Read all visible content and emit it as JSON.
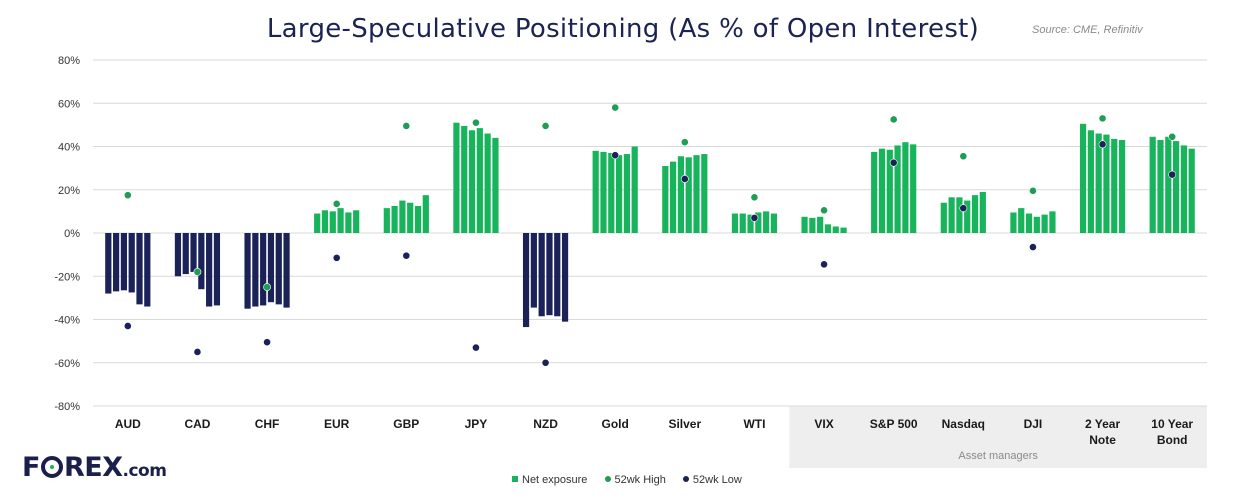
{
  "title": "Large-Speculative Positioning (As % of Open Interest)",
  "source": "Source: CME, Refinitiv",
  "brand": {
    "logo_pre": "F",
    "logo_post": "REX",
    "logo_suffix": ".com"
  },
  "colors": {
    "long": "#17b45b",
    "short": "#1b2257",
    "high": "#1e9e55",
    "low": "#1b2257",
    "shade": "#eeeeee",
    "grid": "#d9d9d9"
  },
  "chart_data": {
    "type": "bar",
    "ylim": [
      -80,
      80
    ],
    "yticks": [
      -80,
      -60,
      -40,
      -20,
      0,
      20,
      40,
      60,
      80
    ],
    "ytick_suffix": "%",
    "group_label": "Asset managers",
    "categories": [
      {
        "label": [
          "AUD"
        ],
        "bars": [
          -28,
          -27,
          -26.5,
          -27.5,
          -33,
          -34
        ],
        "high": 17.5,
        "low": -43
      },
      {
        "label": [
          "CAD"
        ],
        "bars": [
          -20,
          -19,
          -18,
          -26,
          -34,
          -33.5
        ],
        "high": -18,
        "low": -55
      },
      {
        "label": [
          "CHF"
        ],
        "bars": [
          -35,
          -34,
          -33.5,
          -32,
          -33,
          -34.5
        ],
        "high": -25,
        "low": -50.5
      },
      {
        "label": [
          "EUR"
        ],
        "bars": [
          9,
          10.5,
          10,
          11.5,
          9.5,
          10.5
        ],
        "high": 13.5,
        "low": -11.5
      },
      {
        "label": [
          "GBP"
        ],
        "bars": [
          11.5,
          12.5,
          15,
          14,
          12.5,
          17.5
        ],
        "high": 49.5,
        "low": -10.5
      },
      {
        "label": [
          "JPY"
        ],
        "bars": [
          51,
          49.5,
          47.5,
          48.5,
          46,
          44
        ],
        "high": 51,
        "low": -53
      },
      {
        "label": [
          "NZD"
        ],
        "bars": [
          -43.5,
          -34.5,
          -38.5,
          -38,
          -38.5,
          -41
        ],
        "high": 49.5,
        "low": -60
      },
      {
        "label": [
          "Gold"
        ],
        "bars": [
          38,
          37.5,
          37,
          36,
          36.5,
          40
        ],
        "high": 58,
        "low": 36
      },
      {
        "label": [
          "Silver"
        ],
        "bars": [
          31,
          33,
          35.5,
          35,
          36,
          36.5
        ],
        "high": 42,
        "low": 25
      },
      {
        "label": [
          "WTI"
        ],
        "bars": [
          9,
          9,
          8.5,
          9.5,
          10,
          9
        ],
        "high": 16.5,
        "low": 7
      },
      {
        "label": [
          "VIX"
        ],
        "bars": [
          7.5,
          7,
          7.5,
          4,
          3,
          2.5
        ],
        "high": 10.5,
        "low": -14.5
      },
      {
        "label": [
          "S&P 500"
        ],
        "bars": [
          37.5,
          39,
          38.5,
          40.5,
          42,
          41
        ],
        "high": 52.5,
        "low": 32.5
      },
      {
        "label": [
          "Nasdaq"
        ],
        "bars": [
          14,
          16.5,
          16.5,
          15,
          17.5,
          19
        ],
        "high": 35.5,
        "low": 11.5
      },
      {
        "label": [
          "DJI"
        ],
        "bars": [
          9.5,
          11.5,
          9,
          7.5,
          8.5,
          10
        ],
        "high": 19.5,
        "low": -6.5
      },
      {
        "label": [
          "2 Year",
          "Note"
        ],
        "bars": [
          50.5,
          47.5,
          46,
          45.5,
          43.5,
          43
        ],
        "high": 53,
        "low": 41
      },
      {
        "label": [
          "10 Year",
          "Bond"
        ],
        "bars": [
          44.5,
          43,
          44.5,
          42.5,
          40.5,
          39
        ],
        "high": 44.5,
        "low": 27
      }
    ],
    "legend": [
      {
        "key": "bar",
        "label": "Net exposure"
      },
      {
        "key": "high",
        "label": "52wk High"
      },
      {
        "key": "low",
        "label": "52wk Low"
      }
    ]
  }
}
